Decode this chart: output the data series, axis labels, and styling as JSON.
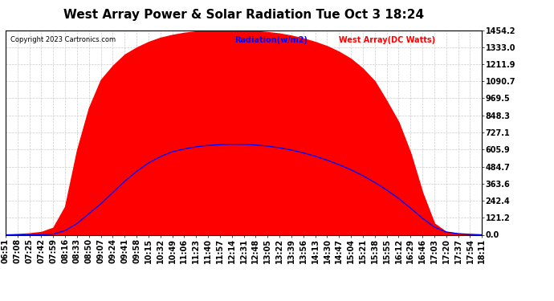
{
  "title": "West Array Power & Solar Radiation Tue Oct 3 18:24",
  "copyright": "Copyright 2023 Cartronics.com",
  "legend_radiation": "Radiation(w/m2)",
  "legend_west": "West Array(DC Watts)",
  "ymax": 1454.2,
  "yticks": [
    0.0,
    121.2,
    242.4,
    363.6,
    484.7,
    605.9,
    727.1,
    848.3,
    969.5,
    1090.7,
    1211.9,
    1333.0,
    1454.2
  ],
  "xtick_labels": [
    "06:51",
    "07:08",
    "07:25",
    "07:42",
    "07:59",
    "08:16",
    "08:33",
    "08:50",
    "09:07",
    "09:24",
    "09:41",
    "09:58",
    "10:15",
    "10:32",
    "10:49",
    "11:06",
    "11:23",
    "11:40",
    "11:57",
    "12:14",
    "12:31",
    "12:48",
    "13:05",
    "13:22",
    "13:39",
    "13:56",
    "14:13",
    "14:30",
    "14:47",
    "15:04",
    "15:21",
    "15:38",
    "15:55",
    "16:12",
    "16:29",
    "16:46",
    "17:03",
    "17:20",
    "17:37",
    "17:54",
    "18:11"
  ],
  "background_color": "#ffffff",
  "plot_bg_color": "#ffffff",
  "grid_color": "#cccccc",
  "radiation_color": "#ff0000",
  "west_color": "#0000ff",
  "radiation_fill_color": "#ff0000",
  "title_fontsize": 11,
  "tick_fontsize": 7,
  "radiation_data": [
    0,
    5,
    10,
    20,
    50,
    200,
    600,
    900,
    1100,
    1200,
    1280,
    1330,
    1370,
    1400,
    1420,
    1435,
    1445,
    1450,
    1452,
    1454,
    1452,
    1448,
    1440,
    1430,
    1415,
    1395,
    1370,
    1340,
    1300,
    1250,
    1180,
    1090,
    950,
    800,
    580,
    300,
    80,
    20,
    8,
    3,
    0
  ],
  "west_data": [
    0,
    0,
    0,
    0,
    5,
    30,
    80,
    150,
    220,
    300,
    380,
    450,
    510,
    555,
    590,
    610,
    625,
    635,
    640,
    643,
    642,
    638,
    630,
    618,
    602,
    582,
    558,
    530,
    498,
    462,
    420,
    372,
    318,
    258,
    190,
    118,
    55,
    20,
    8,
    3,
    0
  ]
}
